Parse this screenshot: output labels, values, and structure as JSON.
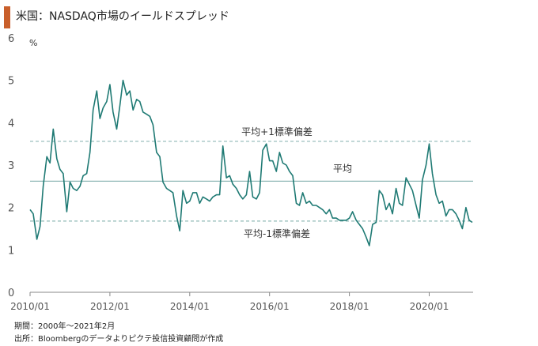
{
  "title": "米国：NASDAQ市場のイールドスプレッド",
  "footnotes": {
    "period": "期間：2000年～2021年2月",
    "source": "出所：Bloombergのデータよりピクテ投信投資顧問が作成"
  },
  "colors": {
    "accent": "#c95f2b",
    "series": "#1f7a74",
    "reference_lines": "#8fb8b6",
    "axis": "#666666"
  },
  "chart_data": {
    "type": "line",
    "title": "米国：NASDAQ市場のイールドスプレッド",
    "ylabel": "%",
    "xlabel": "",
    "ylim": [
      0,
      6
    ],
    "xlim": [
      2010.0,
      2021.1
    ],
    "yticks": [
      "0",
      "1",
      "2",
      "3",
      "4",
      "5",
      "6"
    ],
    "xticks": [
      {
        "value": 2010.0,
        "label": "2010/01"
      },
      {
        "value": 2012.0,
        "label": "2012/01"
      },
      {
        "value": 2014.0,
        "label": "2014/01"
      },
      {
        "value": 2016.0,
        "label": "2016/01"
      },
      {
        "value": 2018.0,
        "label": "2018/01"
      },
      {
        "value": 2020.0,
        "label": "2020/01"
      }
    ],
    "grid": false,
    "reference_lines": [
      {
        "label": "平均+1標準偏差",
        "value": 3.56,
        "style": "dashed"
      },
      {
        "label": "平均",
        "value": 2.62,
        "style": "solid"
      },
      {
        "label": "平均-1標準偏差",
        "value": 1.68,
        "style": "dashed"
      }
    ],
    "series": [
      {
        "x": [
          2010.0,
          2010.08,
          2010.17,
          2010.25,
          2010.33,
          2010.42,
          2010.5,
          2010.58,
          2010.67,
          2010.75,
          2010.83,
          2010.92,
          2011.0,
          2011.08,
          2011.17,
          2011.25,
          2011.33,
          2011.42,
          2011.5,
          2011.58,
          2011.67,
          2011.75,
          2011.83,
          2011.92,
          2012.0,
          2012.08,
          2012.17,
          2012.25,
          2012.33,
          2012.42,
          2012.5,
          2012.58,
          2012.67,
          2012.75,
          2012.83,
          2012.92,
          2013.0,
          2013.08,
          2013.17,
          2013.25,
          2013.33,
          2013.42,
          2013.5,
          2013.58,
          2013.67,
          2013.75,
          2013.83,
          2013.92,
          2014.0,
          2014.08,
          2014.17,
          2014.25,
          2014.33,
          2014.42,
          2014.5,
          2014.58,
          2014.67,
          2014.75,
          2014.83,
          2014.92,
          2015.0,
          2015.08,
          2015.17,
          2015.25,
          2015.33,
          2015.42,
          2015.5,
          2015.58,
          2015.67,
          2015.75,
          2015.83,
          2015.92,
          2016.0,
          2016.08,
          2016.17,
          2016.25,
          2016.33,
          2016.42,
          2016.5,
          2016.58,
          2016.67,
          2016.75,
          2016.83,
          2016.92,
          2017.0,
          2017.08,
          2017.17,
          2017.25,
          2017.33,
          2017.42,
          2017.5,
          2017.58,
          2017.67,
          2017.75,
          2017.83,
          2017.92,
          2018.0,
          2018.08,
          2018.17,
          2018.25,
          2018.33,
          2018.42,
          2018.5,
          2018.58,
          2018.67,
          2018.75,
          2018.83,
          2018.92,
          2019.0,
          2019.08,
          2019.17,
          2019.25,
          2019.33,
          2019.42,
          2019.5,
          2019.58,
          2019.67,
          2019.75,
          2019.83,
          2019.92,
          2020.0,
          2020.08,
          2020.17,
          2020.25,
          2020.33,
          2020.42,
          2020.5,
          2020.58,
          2020.67,
          2020.75,
          2020.83,
          2020.92,
          2021.0,
          2021.08
        ],
        "values": [
          1.95,
          1.85,
          1.25,
          1.55,
          2.5,
          3.2,
          3.05,
          3.85,
          3.15,
          2.9,
          2.8,
          1.9,
          2.6,
          2.45,
          2.4,
          2.5,
          2.75,
          2.8,
          3.3,
          4.3,
          4.75,
          4.1,
          4.35,
          4.5,
          4.9,
          4.25,
          3.85,
          4.4,
          5.0,
          4.65,
          4.75,
          4.3,
          4.55,
          4.5,
          4.25,
          4.2,
          4.15,
          3.95,
          3.3,
          3.2,
          2.6,
          2.45,
          2.4,
          2.35,
          1.8,
          1.45,
          2.4,
          2.1,
          2.15,
          2.35,
          2.35,
          2.1,
          2.25,
          2.2,
          2.15,
          2.25,
          2.3,
          2.3,
          3.45,
          2.7,
          2.75,
          2.55,
          2.45,
          2.3,
          2.2,
          2.3,
          2.85,
          2.25,
          2.2,
          2.35,
          3.35,
          3.5,
          3.1,
          3.1,
          2.85,
          3.3,
          3.05,
          3.0,
          2.85,
          2.75,
          2.1,
          2.05,
          2.35,
          2.1,
          2.15,
          2.05,
          2.05,
          2.0,
          1.95,
          1.85,
          1.95,
          1.75,
          1.75,
          1.7,
          1.7,
          1.7,
          1.75,
          1.9,
          1.7,
          1.6,
          1.5,
          1.3,
          1.1,
          1.6,
          1.65,
          2.4,
          2.3,
          1.95,
          2.1,
          1.85,
          2.45,
          2.1,
          2.05,
          2.7,
          2.55,
          2.4,
          2.05,
          1.75,
          2.65,
          3.0,
          3.5,
          2.8,
          2.3,
          2.1,
          2.15,
          1.8,
          1.95,
          1.95,
          1.85,
          1.7,
          1.5,
          2.0,
          1.7,
          1.65
        ]
      }
    ]
  }
}
